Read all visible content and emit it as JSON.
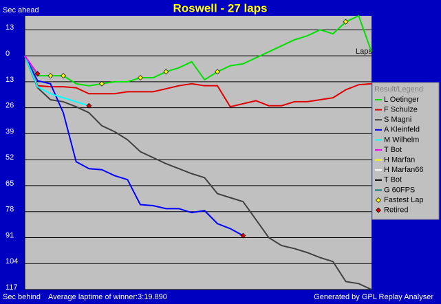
{
  "chart_data": {
    "type": "line",
    "title": "Roswell - 27 laps",
    "y_label_top": "Sec ahead",
    "y_label_bottom": "Sec behind",
    "x_label": "Laps",
    "footer_left": "Average laptime of winner:3:19.890",
    "footer_right": "Generated by GPL Replay Analyser",
    "legend_title": "Result/Legend",
    "grid": true,
    "xlim": [
      0,
      27
    ],
    "ylim": [
      -117,
      20
    ],
    "yticks": [
      {
        "value": 13,
        "label": "13"
      },
      0,
      {
        "value": -13,
        "label": "13"
      },
      {
        "value": -26,
        "label": "26"
      },
      {
        "value": -39,
        "label": "39"
      },
      {
        "value": -52,
        "label": "52"
      },
      {
        "value": -65,
        "label": "65"
      },
      {
        "value": -78,
        "label": "78"
      },
      {
        "value": -91,
        "label": "91"
      },
      {
        "value": -104,
        "label": "104"
      },
      {
        "value": -117,
        "label": "117"
      }
    ],
    "x": [
      0,
      1,
      2,
      3,
      4,
      5,
      6,
      7,
      8,
      9,
      10,
      11,
      12,
      13,
      14,
      15,
      16,
      17,
      18,
      19,
      20,
      21,
      22,
      23,
      24,
      25,
      26,
      27
    ],
    "series": [
      {
        "name": "L Oetinger",
        "color": "#00e000",
        "values": [
          0,
          -10,
          -10,
          -10,
          -14,
          -15,
          -14,
          -13,
          -13,
          -11,
          -11,
          -8,
          -6,
          -3,
          -12,
          -8,
          -5,
          -4,
          -1,
          2,
          5,
          8,
          10,
          13,
          11,
          17,
          20,
          2
        ]
      },
      {
        "name": "F Schulze",
        "color": "#e00000",
        "values": [
          0,
          -15,
          -15.5,
          -15.5,
          -16,
          -19,
          -19,
          -19,
          -18,
          -18,
          -18,
          -16.5,
          -15,
          -14,
          -15,
          -15,
          -25.5,
          -24,
          -22.5,
          -25,
          -25,
          -23,
          -23,
          -22,
          -21,
          -17,
          -14.5,
          -14
        ]
      },
      {
        "name": "S Magni",
        "color": "#404040",
        "values": [
          0,
          -16,
          -22,
          -23,
          -25.5,
          -28.5,
          -35,
          -38,
          -42,
          -48,
          -51,
          -54,
          -56.5,
          -59,
          -61,
          -69,
          -71,
          -73,
          -82,
          -91,
          -95,
          -96.5,
          -98.5,
          -101,
          -103,
          -113,
          -114,
          -117
        ]
      },
      {
        "name": "A Kleinfeld",
        "color": "#0000ff",
        "values": [
          0,
          -12.5,
          -14,
          -28.5,
          -53,
          -56.5,
          -57,
          -60,
          -62,
          -74.5,
          -75,
          -76.5,
          -76.5,
          -78.5,
          -77.5,
          -84,
          -86.5,
          -90,
          null,
          null,
          null,
          null,
          null,
          null,
          null,
          null,
          null,
          null
        ]
      },
      {
        "name": "M Wilhelm",
        "color": "#00ffff",
        "values": [
          0,
          -15.5,
          -19,
          -21,
          -23,
          -25,
          null,
          null,
          null,
          null,
          null,
          null,
          null,
          null,
          null,
          null,
          null,
          null,
          null,
          null,
          null,
          null,
          null,
          null,
          null,
          null,
          null,
          null
        ]
      },
      {
        "name": "T Bot",
        "color": "#ff00ff",
        "values": [
          0,
          -9,
          null,
          null,
          null,
          null,
          null,
          null,
          null,
          null,
          null,
          null,
          null,
          null,
          null,
          null,
          null,
          null,
          null,
          null,
          null,
          null,
          null,
          null,
          null,
          null,
          null,
          null
        ]
      },
      {
        "name": "H Marfan",
        "color": "#ffff00",
        "values": [
          null,
          null,
          null,
          null,
          null,
          null,
          null,
          null,
          null,
          null,
          null,
          null,
          null,
          null,
          null,
          null,
          null,
          null,
          null,
          null,
          null,
          null,
          null,
          null,
          null,
          null,
          null,
          null
        ]
      },
      {
        "name": "H Marfan66",
        "color": "#ffffff",
        "values": [
          null,
          null,
          null,
          null,
          null,
          null,
          null,
          null,
          null,
          null,
          null,
          null,
          null,
          null,
          null,
          null,
          null,
          null,
          null,
          null,
          null,
          null,
          null,
          null,
          null,
          null,
          null,
          null
        ]
      },
      {
        "name": "T Bot",
        "color": "#000000",
        "values": [
          null,
          null,
          null,
          null,
          null,
          null,
          null,
          null,
          null,
          null,
          null,
          null,
          null,
          null,
          null,
          null,
          null,
          null,
          null,
          null,
          null,
          null,
          null,
          null,
          null,
          null,
          null,
          null
        ]
      },
      {
        "name": "G 60FPS",
        "color": "#008080",
        "values": [
          null,
          null,
          null,
          null,
          null,
          null,
          null,
          null,
          null,
          null,
          null,
          null,
          null,
          null,
          null,
          null,
          null,
          null,
          null,
          null,
          null,
          null,
          null,
          null,
          null,
          null,
          null,
          null
        ]
      }
    ],
    "markers": [
      {
        "name": "Fastest Lap",
        "color": "#ffff00",
        "x": [
          2,
          3,
          6,
          9,
          11,
          15,
          25
        ],
        "values": [
          -10,
          -10,
          -14,
          -11,
          -8,
          -8,
          17
        ]
      },
      {
        "name": "Retired",
        "color": "#e00000",
        "x": [
          1,
          5,
          17
        ],
        "values": [
          -9,
          -25,
          -90
        ]
      }
    ]
  }
}
